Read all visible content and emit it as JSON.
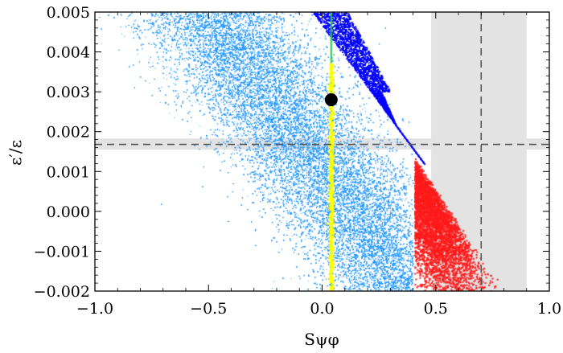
{
  "chart_data": {
    "type": "scatter",
    "xlabel": "Sψφ",
    "ylabel": "ε′/ε",
    "xlim": [
      -1.0,
      1.0
    ],
    "ylim": [
      -0.002,
      0.005
    ],
    "x_ticks": [
      "−1.0",
      "−0.5",
      "0.0",
      "0.5",
      "1.0"
    ],
    "x_tick_values": [
      -1.0,
      -0.5,
      0.0,
      0.5,
      1.0
    ],
    "y_ticks": [
      "−0.002",
      "−0.001",
      "0.000",
      "0.001",
      "0.002",
      "0.003",
      "0.004",
      "0.005"
    ],
    "y_tick_values": [
      -0.002,
      -0.001,
      0.0,
      0.001,
      0.002,
      0.003,
      0.004,
      0.005
    ],
    "grid": false,
    "legend": "none",
    "measurement_bands": {
      "x_band": [
        0.48,
        0.9
      ],
      "x_line": 0.7,
      "y_band": [
        0.00155,
        0.00183
      ],
      "y_line": 0.00168
    },
    "reference_point": {
      "x": 0.04,
      "y": 0.0028
    },
    "vertical_line_x": 0.04,
    "series": [
      {
        "region": "light-blue scatter",
        "color": "#2196ff"
      },
      {
        "region": "dark-blue scatter",
        "color": "#0000ff"
      },
      {
        "region": "red scatter",
        "color": "#ff1a1a"
      },
      {
        "region": "yellow points",
        "color": "#ffff00"
      },
      {
        "region": "green line",
        "color": "#22cc44"
      }
    ],
    "colors": {
      "band_fill": "#e3e3e3",
      "dashed_line": "#555555",
      "point": "#000000"
    }
  }
}
